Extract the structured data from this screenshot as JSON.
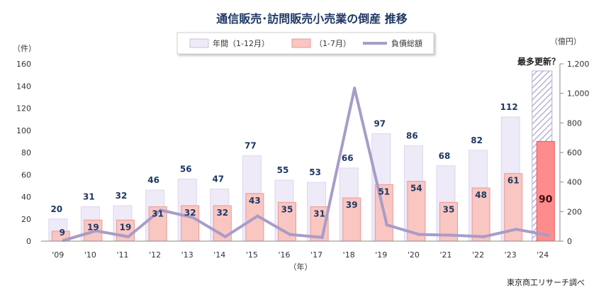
{
  "chart_data": {
    "type": "bar",
    "title": "通信販売･訪問販売小売業の倒産 推移",
    "xlabel": "（年）",
    "y_left_unit": "（件）",
    "y_right_unit": "（億円）",
    "categories": [
      "'09",
      "'10",
      "'11",
      "'12",
      "'13",
      "'14",
      "'15",
      "'16",
      "'17",
      "'18",
      "'19",
      "'20",
      "'21",
      "'22",
      "'23",
      "'24"
    ],
    "ylim_left": [
      0,
      160
    ],
    "yticks_left": [
      0,
      20,
      40,
      60,
      80,
      100,
      120,
      140,
      160
    ],
    "ylim_right": [
      0,
      1200
    ],
    "yticks_right": [
      "0",
      "200",
      "400",
      "600",
      "800",
      "1,000",
      "1,200"
    ],
    "series": [
      {
        "name": "年間（1-12月）",
        "kind": "bar",
        "axis": "left",
        "color": "#efeaf8",
        "values": [
          20,
          31,
          32,
          46,
          56,
          47,
          77,
          55,
          53,
          66,
          97,
          86,
          68,
          82,
          112,
          null
        ]
      },
      {
        "name": "（1-7月）",
        "kind": "bar",
        "axis": "left",
        "color": "#f9c6c2",
        "values": [
          9,
          19,
          19,
          31,
          32,
          32,
          43,
          35,
          31,
          39,
          51,
          54,
          35,
          48,
          61,
          90
        ]
      },
      {
        "name": "負債総額",
        "kind": "line",
        "axis": "right",
        "color": "#a89cc8",
        "values": [
          5,
          70,
          30,
          210,
          160,
          30,
          170,
          45,
          25,
          1035,
          110,
          45,
          40,
          30,
          80,
          40
        ]
      }
    ],
    "highlight": {
      "category": "'24",
      "color": "#ff8c8c"
    },
    "annotation": "最多更新？",
    "source": "東京商工リサーチ調べ",
    "legend_position": "top-center",
    "grid": false
  }
}
